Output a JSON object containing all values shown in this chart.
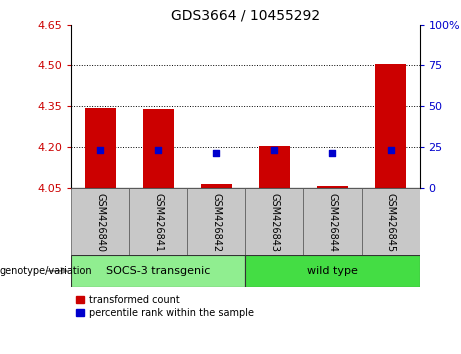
{
  "title": "GDS3664 / 10455292",
  "samples": [
    "GSM426840",
    "GSM426841",
    "GSM426842",
    "GSM426843",
    "GSM426844",
    "GSM426845"
  ],
  "bar_values": [
    4.345,
    4.34,
    4.065,
    4.205,
    4.055,
    4.505
  ],
  "bar_bottom": 4.05,
  "percentile_ranks": [
    23,
    23,
    21,
    23,
    21,
    23
  ],
  "bar_color": "#cc0000",
  "dot_color": "#0000cc",
  "ylim_left": [
    4.05,
    4.65
  ],
  "ylim_right": [
    0,
    100
  ],
  "yticks_left": [
    4.05,
    4.2,
    4.35,
    4.5,
    4.65
  ],
  "yticks_right": [
    0,
    25,
    50,
    75,
    100
  ],
  "hlines": [
    4.2,
    4.35,
    4.5
  ],
  "groups": [
    {
      "label": "SOCS-3 transgenic",
      "indices": [
        0,
        1,
        2
      ],
      "color": "#90EE90"
    },
    {
      "label": "wild type",
      "indices": [
        3,
        4,
        5
      ],
      "color": "#44dd44"
    }
  ],
  "legend": [
    {
      "label": "transformed count",
      "color": "#cc0000"
    },
    {
      "label": "percentile rank within the sample",
      "color": "#0000cc"
    }
  ],
  "genotype_label": "genotype/variation",
  "bar_width": 0.55,
  "left_tick_color": "#cc0000",
  "right_tick_color": "#0000cc",
  "sample_box_color": "#c8c8c8"
}
